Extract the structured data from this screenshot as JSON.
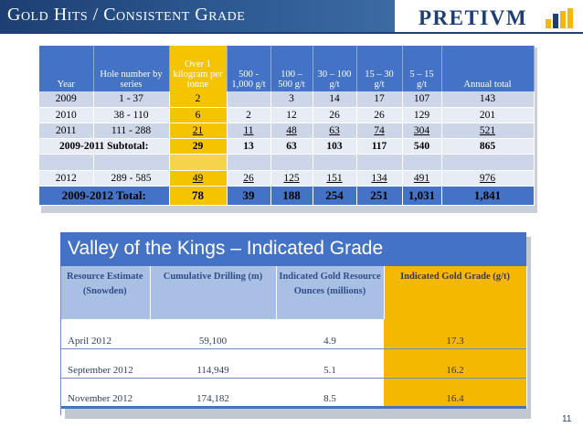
{
  "header": {
    "title": "Gold Hits / Consistent Grade",
    "logo_text": "PRETIVM"
  },
  "colors": {
    "header_blue": "#1d3f73",
    "table_blue": "#4472c4",
    "gold": "#f5c400",
    "row_light": "#cdd5e8"
  },
  "drill_table": {
    "headers": [
      "Year",
      "Hole number by series",
      "Over 1 kilogram per tonne",
      "500 - 1,000 g/t",
      "100 – 500 g/t",
      "30 – 100 g/t",
      "15 – 30 g/t",
      "5 – 15 g/t",
      "Annual total"
    ],
    "rows": [
      [
        "2009",
        "1 - 37",
        "2",
        "",
        "3",
        "14",
        "17",
        "107",
        "143"
      ],
      [
        "2010",
        "38 - 110",
        "6",
        "2",
        "12",
        "26",
        "26",
        "129",
        "201"
      ],
      [
        "2011",
        "111 - 288",
        "21",
        "11",
        "48",
        "63",
        "74",
        "304",
        "521"
      ],
      [
        "2009-2011 Subtotal:",
        "",
        "29",
        "13",
        "63",
        "103",
        "117",
        "540",
        "865"
      ],
      [
        "",
        "",
        "",
        "",
        "",
        "",
        "",
        "",
        ""
      ],
      [
        "2012",
        "289 - 585",
        "49",
        "26",
        "125",
        "151",
        "134",
        "491",
        "976"
      ]
    ],
    "total_row": [
      "2009-2012 Total:",
      "78",
      "39",
      "188",
      "254",
      "251",
      "1,031",
      "1,841"
    ]
  },
  "grade_table": {
    "title": "Valley of the Kings – Indicated Grade",
    "headers": [
      "Resource Estimate (Snowden)",
      "Cumulative Drilling (m)",
      "Indicated Gold Resource Ounces (millions)",
      "Indicated Gold Grade (g/t)"
    ],
    "rows": [
      [
        "April 2012",
        "59,100",
        "4.9",
        "17.3"
      ],
      [
        "September 2012",
        "114,949",
        "5.1",
        "16.2"
      ],
      [
        "November 2012",
        "174,182",
        "8.5",
        "16.4"
      ]
    ]
  },
  "page_number": "11"
}
